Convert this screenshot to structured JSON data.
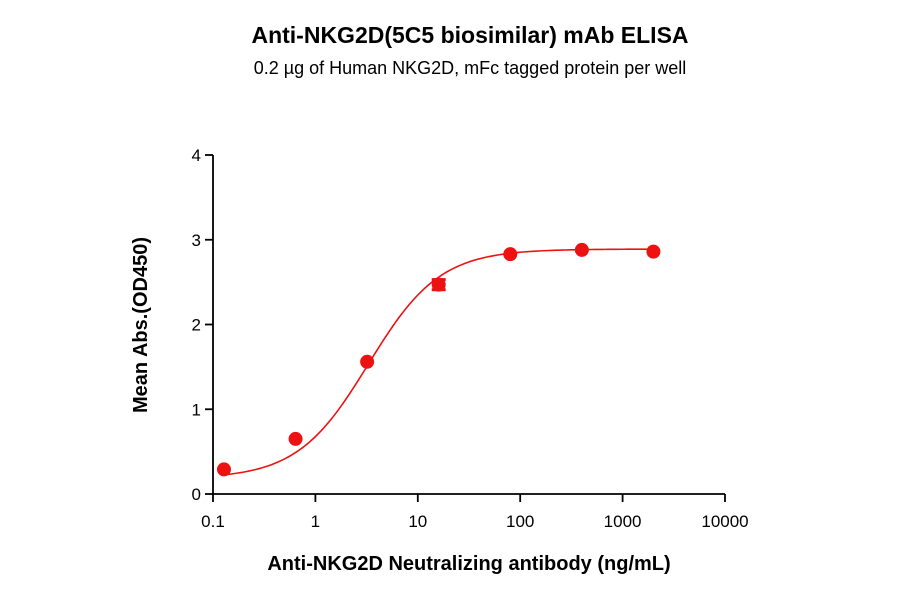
{
  "colors": {
    "series": "#ee1111",
    "axis": "#000000",
    "background": "#ffffff"
  },
  "chart_data": {
    "type": "scatter",
    "title": "Anti-NKG2D(5C5 biosimilar) mAb ELISA",
    "subtitle": "0.2 µg of Human NKG2D, mFc tagged protein per well",
    "xlabel": "Anti-NKG2D Neutralizing antibody (ng/mL)",
    "ylabel": "Mean Abs.(OD450)",
    "x_scale": "log",
    "xlim": [
      0.1,
      10000
    ],
    "ylim": [
      0,
      4
    ],
    "x_ticks": [
      0.1,
      1,
      10,
      100,
      1000,
      10000
    ],
    "x_tick_labels": [
      "0.1",
      "1",
      "10",
      "100",
      "1000",
      "10000"
    ],
    "y_ticks": [
      0,
      1,
      2,
      3,
      4
    ],
    "y_tick_labels": [
      "0",
      "1",
      "2",
      "3",
      "4"
    ],
    "grid": false,
    "series": [
      {
        "x": [
          0.128,
          0.64,
          3.2,
          16,
          80,
          400,
          2000
        ],
        "y": [
          0.29,
          0.65,
          1.56,
          2.47,
          2.83,
          2.88,
          2.86
        ],
        "y_err": [
          0,
          0,
          0,
          0.06,
          0,
          0,
          0
        ],
        "marker": "circle",
        "fit": "four-parameter logistic curve"
      }
    ]
  }
}
